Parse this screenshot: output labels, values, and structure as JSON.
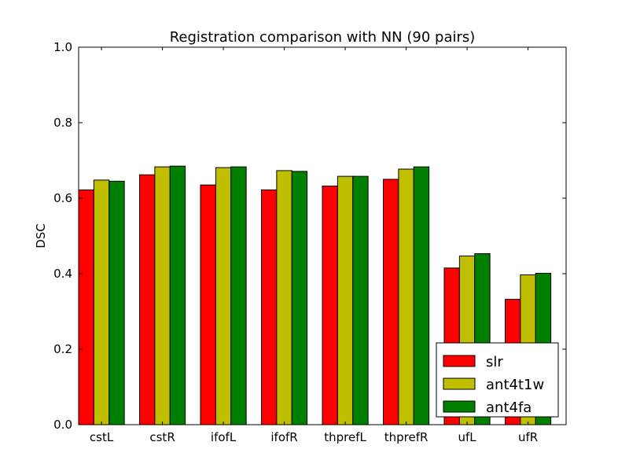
{
  "chart_data": {
    "type": "bar",
    "title": "Registration comparison with NN (90 pairs)",
    "xlabel": "",
    "ylabel": "DSC",
    "ylim": [
      0.0,
      1.0
    ],
    "yticks": [
      "0.0",
      "0.2",
      "0.4",
      "0.6",
      "0.8",
      "1.0"
    ],
    "categories": [
      "cstL",
      "cstR",
      "ifofL",
      "ifofR",
      "thprefL",
      "thprefR",
      "ufL",
      "ufR"
    ],
    "series": [
      {
        "name": "slr",
        "color": "#ff0000",
        "values": [
          0.622,
          0.662,
          0.635,
          0.622,
          0.632,
          0.65,
          0.415,
          0.332
        ]
      },
      {
        "name": "ant4t1w",
        "color": "#bfbf00",
        "values": [
          0.648,
          0.683,
          0.681,
          0.673,
          0.658,
          0.677,
          0.447,
          0.397
        ]
      },
      {
        "name": "ant4fa",
        "color": "#008000",
        "values": [
          0.645,
          0.685,
          0.683,
          0.671,
          0.658,
          0.683,
          0.453,
          0.401
        ]
      }
    ],
    "grid": false,
    "legend_position": "lower-right"
  }
}
